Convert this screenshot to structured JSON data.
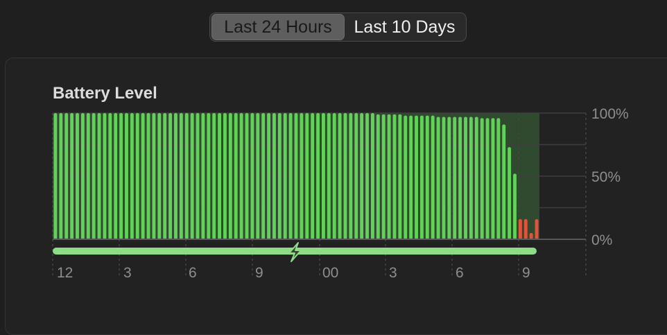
{
  "range_selector": {
    "options": [
      {
        "label": "Last 24 Hours",
        "selected": true
      },
      {
        "label": "Last 10 Days",
        "selected": false
      }
    ]
  },
  "battery_chart": {
    "title": "Battery Level",
    "charging_icon": "lightning-bolt-icon"
  },
  "colors": {
    "bar_green": "#63d05a",
    "bar_low": "#e0543e",
    "charging_bar": "#8fdc87",
    "charging_bg": "#2f4a2e",
    "grid": "#3e3e3e",
    "label": "#8e8e8e"
  },
  "chart_data": {
    "type": "bar",
    "title": "Battery Level",
    "y_ticks": [
      "100%",
      "50%",
      "0%"
    ],
    "ylim": [
      0,
      100
    ],
    "x_ticks": [
      "12",
      "3",
      "6",
      "9",
      "00",
      "3",
      "6",
      "9"
    ],
    "values": [
      100,
      100,
      100,
      100,
      100,
      100,
      100,
      100,
      100,
      100,
      100,
      100,
      100,
      100,
      100,
      100,
      100,
      100,
      100,
      100,
      100,
      100,
      100,
      100,
      100,
      100,
      100,
      100,
      100,
      100,
      100,
      100,
      100,
      100,
      100,
      100,
      100,
      100,
      100,
      100,
      100,
      100,
      100,
      100,
      100,
      100,
      100,
      100,
      100,
      100,
      100,
      100,
      100,
      100,
      100,
      100,
      100,
      100,
      100,
      99,
      99,
      99,
      99,
      99,
      98,
      98,
      98,
      98,
      98,
      98,
      97,
      97,
      97,
      97,
      97,
      97,
      97,
      97,
      96,
      96,
      96,
      96,
      91,
      73,
      52,
      16,
      16,
      5,
      16
    ],
    "low_threshold": 20,
    "charging_ranges": [
      [
        0,
        88
      ]
    ]
  }
}
